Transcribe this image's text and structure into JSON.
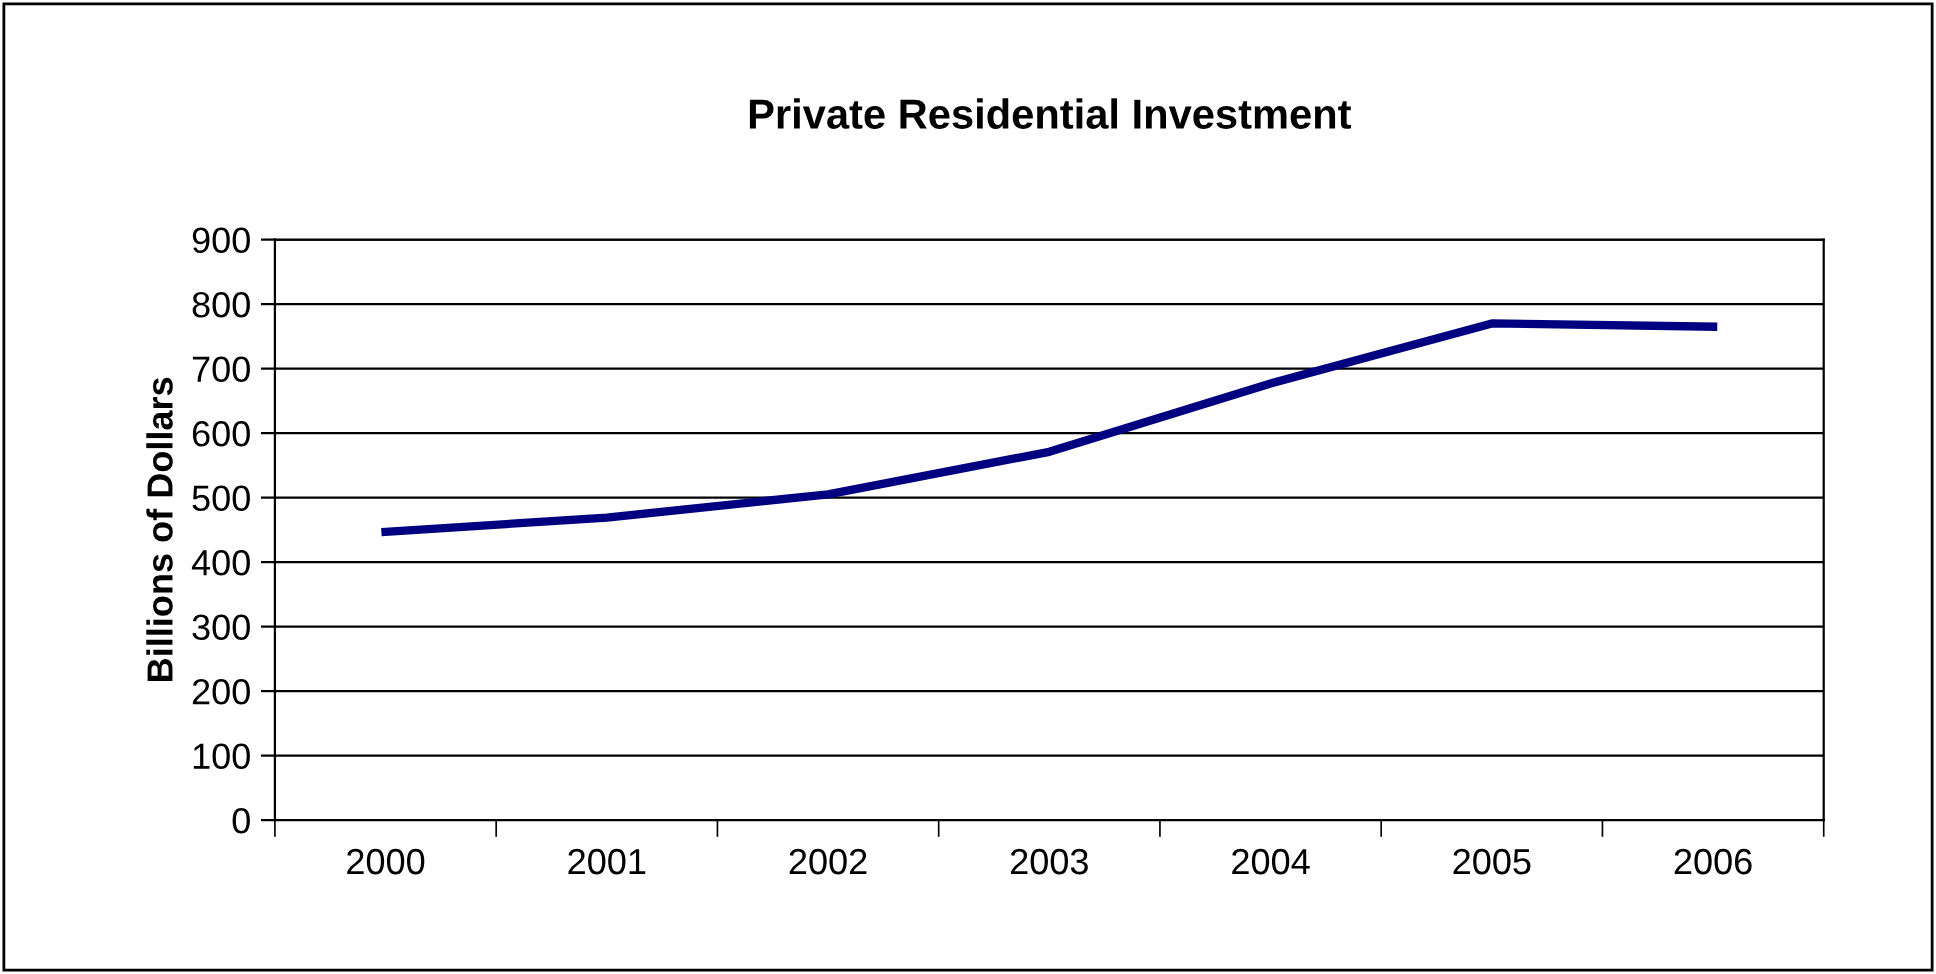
{
  "chart_data": {
    "type": "line",
    "title": "Private Residential Investment",
    "ylabel": "Billions of Dollars",
    "categories": [
      "2000",
      "2001",
      "2002",
      "2003",
      "2004",
      "2005",
      "2006"
    ],
    "series": [
      {
        "color": "#000080",
        "values": [
          447,
          469,
          505,
          571,
          677,
          770,
          765
        ]
      }
    ],
    "ylim": [
      0,
      900
    ],
    "yticks": [
      0,
      100,
      200,
      300,
      400,
      500,
      600,
      700,
      800,
      900
    ],
    "grid": "y",
    "marker": "none",
    "line_style": "solid"
  }
}
